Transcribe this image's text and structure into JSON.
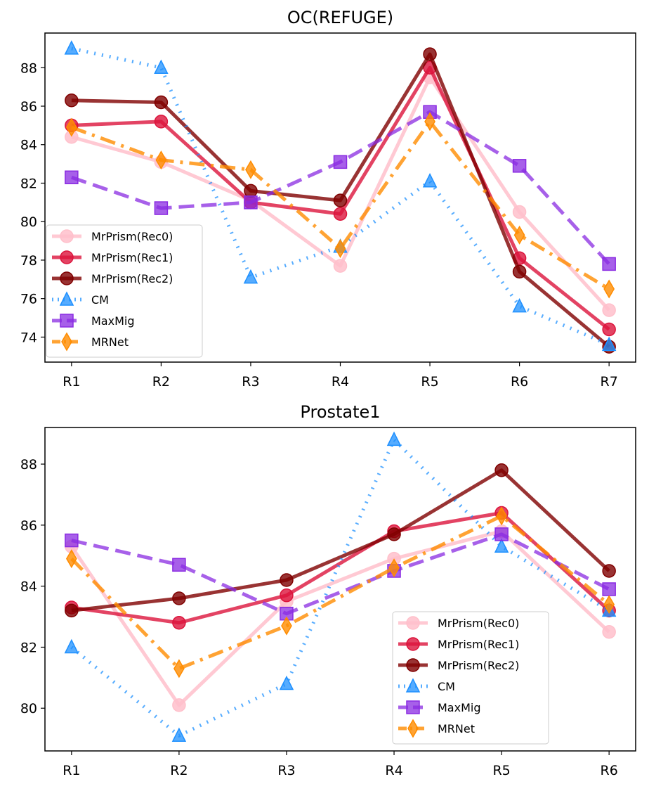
{
  "chart_data": [
    {
      "type": "line",
      "title": "OC(REFUGE)",
      "xlabel": "",
      "ylabel": "",
      "categories": [
        "R1",
        "R2",
        "R3",
        "R4",
        "R5",
        "R6",
        "R7"
      ],
      "ylim": [
        72.7,
        89.8
      ],
      "yticks": [
        74,
        76,
        78,
        80,
        82,
        84,
        86,
        88
      ],
      "legend": "lower-left",
      "grid": false,
      "series": [
        {
          "name": "MrPrism(Rec0)",
          "color": "#ffc0cb",
          "marker": "circle",
          "dash": "solid",
          "values": [
            84.4,
            83.1,
            81.1,
            77.7,
            87.5,
            80.5,
            75.4
          ]
        },
        {
          "name": "MrPrism(Rec1)",
          "color": "#dc143c",
          "marker": "circle",
          "dash": "solid",
          "values": [
            85.0,
            85.2,
            81.0,
            80.4,
            88.0,
            78.1,
            74.4
          ]
        },
        {
          "name": "MrPrism(Rec2)",
          "color": "#800000",
          "marker": "circle",
          "dash": "solid",
          "values": [
            86.3,
            86.2,
            81.6,
            81.1,
            88.7,
            77.4,
            73.5
          ]
        },
        {
          "name": "CM",
          "color": "#1e90ff",
          "marker": "triangle",
          "dash": "dotted",
          "values": [
            89.0,
            88.0,
            77.1,
            78.7,
            82.1,
            75.6,
            73.6
          ]
        },
        {
          "name": "MaxMig",
          "color": "#8a2be2",
          "marker": "square",
          "dash": "dashed",
          "values": [
            82.3,
            80.7,
            81.0,
            83.1,
            85.7,
            82.9,
            77.8
          ]
        },
        {
          "name": "MRNet",
          "color": "#ff8c00",
          "marker": "diamond",
          "dash": "dashdot",
          "values": [
            84.9,
            83.2,
            82.7,
            78.6,
            85.2,
            79.3,
            76.5
          ]
        }
      ]
    },
    {
      "type": "line",
      "title": "Prostate1",
      "xlabel": "",
      "ylabel": "",
      "categories": [
        "R1",
        "R2",
        "R3",
        "R4",
        "R5",
        "R6"
      ],
      "ylim": [
        78.6,
        89.2
      ],
      "yticks": [
        80,
        82,
        84,
        86,
        88
      ],
      "legend": "lower-right",
      "grid": false,
      "series": [
        {
          "name": "MrPrism(Rec0)",
          "color": "#ffc0cb",
          "marker": "circle",
          "dash": "solid",
          "values": [
            85.3,
            80.1,
            83.5,
            84.9,
            85.8,
            82.5
          ]
        },
        {
          "name": "MrPrism(Rec1)",
          "color": "#dc143c",
          "marker": "circle",
          "dash": "solid",
          "values": [
            83.3,
            82.8,
            83.7,
            85.8,
            86.4,
            83.2
          ]
        },
        {
          "name": "MrPrism(Rec2)",
          "color": "#800000",
          "marker": "circle",
          "dash": "solid",
          "values": [
            83.2,
            83.6,
            84.2,
            85.7,
            87.8,
            84.5
          ]
        },
        {
          "name": "CM",
          "color": "#1e90ff",
          "marker": "triangle",
          "dash": "dotted",
          "values": [
            82.0,
            79.1,
            80.8,
            88.8,
            85.3,
            83.2
          ]
        },
        {
          "name": "MaxMig",
          "color": "#8a2be2",
          "marker": "square",
          "dash": "dashed",
          "values": [
            85.5,
            84.7,
            83.1,
            84.5,
            85.7,
            83.9
          ]
        },
        {
          "name": "MRNet",
          "color": "#ff8c00",
          "marker": "diamond",
          "dash": "dashdot",
          "values": [
            84.9,
            81.3,
            82.7,
            84.6,
            86.3,
            83.4
          ]
        }
      ]
    }
  ]
}
